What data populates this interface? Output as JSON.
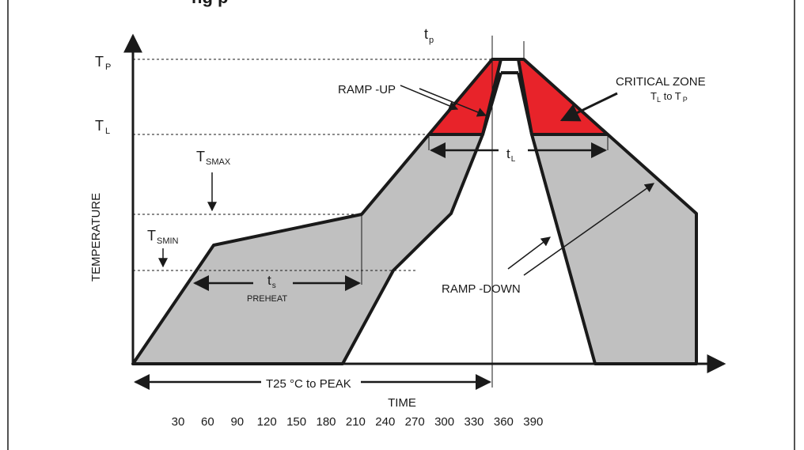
{
  "title": "ng p",
  "axes": {
    "y_label": "TEMPERATURE",
    "x_label": "TIME",
    "x_ticks": [
      "30",
      "60",
      "90",
      "120",
      "150",
      "180",
      "210",
      "240",
      "270",
      "300",
      "330",
      "360",
      "390"
    ]
  },
  "levels": {
    "tp_main": "T",
    "tp_sub": "P",
    "tl_main": "T",
    "tl_sub": "L",
    "tsmax_main": "T",
    "tsmax_sub": "SMAX",
    "tsmin_main": "T",
    "tsmin_sub": "SMIN"
  },
  "annotations": {
    "tp_time_main": "t",
    "tp_time_sub": "p",
    "tl_time_main": "t",
    "tl_time_sub": "L",
    "ts_main": "t",
    "ts_sub": "s",
    "preheat": "PREHEAT",
    "ramp_up": "RAMP  -UP",
    "ramp_down": "RAMP  -DOWN",
    "critical_zone": "CRITICAL ZONE",
    "critical_range_t1": "T",
    "critical_range_s1": "L",
    "critical_range_to": " to T",
    "critical_range_s2": "P",
    "t25_to_peak": "T25 °C to PEAK"
  },
  "colors": {
    "window_fill": "#c0c0c0",
    "critical_zone": "#e8232a",
    "outline": "#1a1a1a"
  }
}
